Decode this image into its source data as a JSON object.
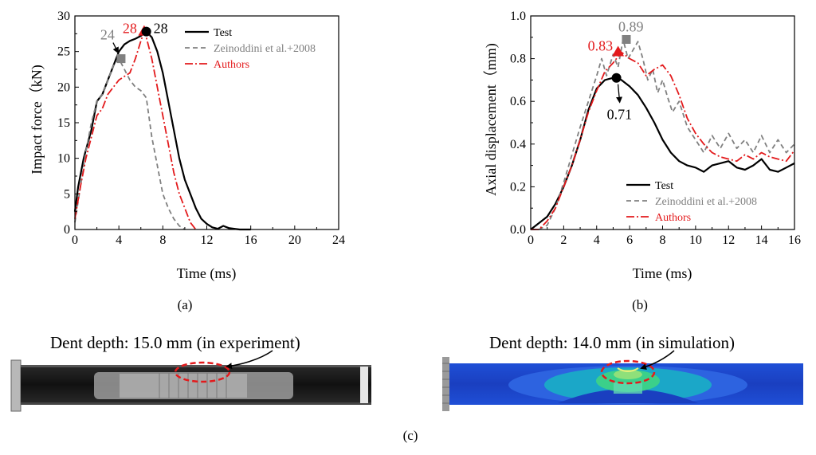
{
  "figure": {
    "panel_a_label": "(a)",
    "panel_b_label": "(b)",
    "panel_c_label": "(c)",
    "dent_experiment_caption": "Dent depth: 15.0 mm (in experiment)",
    "dent_simulation_caption": "Dent depth: 14.0 mm (in simulation)"
  },
  "colors": {
    "test": "#000000",
    "zeinoddini": "#808080",
    "authors": "#e31a1c",
    "dent_ellipse": "#e31a1c"
  },
  "chart_data": [
    {
      "type": "line",
      "id": "a",
      "xlabel": "Time (ms)",
      "ylabel": "Impact force（kN)",
      "xlim": [
        0,
        24
      ],
      "ylim": [
        0,
        30
      ],
      "xticks": [
        0,
        4,
        8,
        12,
        16,
        20,
        24
      ],
      "yticks": [
        0,
        5,
        10,
        15,
        20,
        25,
        30
      ],
      "legend_position": "top-right",
      "series": [
        {
          "name": "Test",
          "style": "solid",
          "x": [
            0,
            0.3,
            0.8,
            1.5,
            2.0,
            2.5,
            3.0,
            3.5,
            4.0,
            4.5,
            5.0,
            5.5,
            6.0,
            6.5,
            7.0,
            7.5,
            8.0,
            8.5,
            9.0,
            9.5,
            10.0,
            10.5,
            11.0,
            11.5,
            12.0,
            12.5,
            13.0,
            13.5,
            14.0,
            14.5,
            15.0,
            16.0
          ],
          "y": [
            2.5,
            6,
            10,
            14,
            18,
            19,
            21,
            23,
            25,
            26,
            26.5,
            26.8,
            27.2,
            27.8,
            27,
            25,
            22,
            18,
            14,
            10,
            7,
            5,
            3,
            1.5,
            0.8,
            0.3,
            0.1,
            0.5,
            0.2,
            0.1,
            0,
            0
          ]
        },
        {
          "name": "Zeinoddini et al.+2008",
          "style": "dashed",
          "x": [
            0,
            0.5,
            1.0,
            1.5,
            2.0,
            2.5,
            3.0,
            3.5,
            4.0,
            4.5,
            5.0,
            5.5,
            6.0,
            6.5,
            7.0,
            7.5,
            8.0,
            8.5,
            9.0,
            9.5,
            10.0
          ],
          "y": [
            1,
            6,
            11,
            15,
            18,
            19,
            21,
            23,
            24,
            22.5,
            21,
            20,
            19.5,
            18.5,
            13,
            9,
            5,
            3,
            1.5,
            0.5,
            0
          ]
        },
        {
          "name": "Authors",
          "style": "dashdot",
          "x": [
            0,
            0.5,
            1.0,
            1.5,
            2.0,
            2.5,
            3.0,
            3.5,
            4.0,
            4.5,
            5.0,
            5.5,
            6.0,
            6.3,
            6.5,
            7.0,
            7.5,
            8.0,
            8.5,
            9.0,
            9.5,
            10.0,
            10.5,
            11.0
          ],
          "y": [
            1.5,
            6,
            10,
            13,
            16,
            17,
            19,
            20,
            21,
            21.5,
            22,
            24,
            26.5,
            27.8,
            27,
            24,
            20,
            16,
            12,
            8,
            5,
            3,
            1,
            0
          ]
        }
      ],
      "annotations": [
        {
          "text": "24",
          "x": 4.2,
          "y": 24,
          "series": "Zeinoddini et al.+2008"
        },
        {
          "text": "28",
          "x": 6.3,
          "y": 27.8,
          "series": "Authors"
        },
        {
          "text": "28",
          "x": 6.5,
          "y": 27.8,
          "series": "Test"
        }
      ]
    },
    {
      "type": "line",
      "id": "b",
      "xlabel": "Time (ms)",
      "ylabel": "Axial displacement（mm)",
      "xlim": [
        0,
        16
      ],
      "ylim": [
        0,
        1.0
      ],
      "xticks": [
        0,
        2,
        4,
        6,
        8,
        10,
        12,
        14,
        16
      ],
      "yticks": [
        0.0,
        0.2,
        0.4,
        0.6,
        0.8,
        1.0
      ],
      "ytick_labels": [
        "0.0",
        "0.2",
        "0.4",
        "0.6",
        "0.8",
        "1.0"
      ],
      "legend_position": "bottom-right",
      "series": [
        {
          "name": "Test",
          "style": "solid",
          "x": [
            0,
            0.5,
            1.0,
            1.5,
            2.0,
            2.5,
            3.0,
            3.5,
            4.0,
            4.5,
            5.0,
            5.3,
            5.5,
            6.0,
            6.5,
            7.0,
            7.5,
            8.0,
            8.5,
            9.0,
            9.5,
            10.0,
            10.5,
            11.0,
            11.5,
            12.0,
            12.5,
            13.0,
            13.5,
            14.0,
            14.5,
            15.0,
            15.5,
            16.0
          ],
          "y": [
            0.0,
            0.03,
            0.06,
            0.12,
            0.2,
            0.3,
            0.42,
            0.56,
            0.66,
            0.7,
            0.71,
            0.71,
            0.7,
            0.67,
            0.63,
            0.57,
            0.5,
            0.42,
            0.36,
            0.32,
            0.3,
            0.29,
            0.27,
            0.3,
            0.31,
            0.32,
            0.29,
            0.28,
            0.3,
            0.33,
            0.28,
            0.27,
            0.29,
            0.31
          ]
        },
        {
          "name": "Zeinoddini et al.+2008",
          "style": "dashed",
          "x": [
            0,
            0.5,
            1.0,
            1.5,
            2.0,
            2.5,
            3.0,
            3.5,
            4.0,
            4.3,
            4.6,
            5.0,
            5.3,
            5.6,
            5.9,
            6.2,
            6.5,
            6.8,
            7.1,
            7.4,
            7.7,
            8.0,
            8.3,
            8.6,
            9.0,
            9.5,
            10.0,
            10.5,
            11.0,
            11.5,
            12.0,
            12.5,
            13.0,
            13.5,
            14.0,
            14.5,
            15.0,
            15.5,
            16.0
          ],
          "y": [
            0.0,
            0.0,
            0.02,
            0.1,
            0.22,
            0.35,
            0.48,
            0.6,
            0.72,
            0.8,
            0.72,
            0.82,
            0.76,
            0.89,
            0.8,
            0.84,
            0.88,
            0.8,
            0.7,
            0.75,
            0.64,
            0.7,
            0.62,
            0.55,
            0.6,
            0.48,
            0.42,
            0.36,
            0.44,
            0.38,
            0.45,
            0.38,
            0.42,
            0.36,
            0.44,
            0.36,
            0.42,
            0.36,
            0.4
          ]
        },
        {
          "name": "Authors",
          "style": "dashdot",
          "x": [
            0,
            0.5,
            1.0,
            1.5,
            2.0,
            2.5,
            3.0,
            3.5,
            4.0,
            4.5,
            5.0,
            5.5,
            6.0,
            6.5,
            7.0,
            7.5,
            8.0,
            8.5,
            9.0,
            9.5,
            10.0,
            10.5,
            11.0,
            11.5,
            12.0,
            12.5,
            13.0,
            13.5,
            14.0,
            14.5,
            15.0,
            15.5,
            16.0
          ],
          "y": [
            0.0,
            0.0,
            0.04,
            0.1,
            0.2,
            0.3,
            0.42,
            0.55,
            0.65,
            0.74,
            0.78,
            0.83,
            0.8,
            0.78,
            0.72,
            0.75,
            0.77,
            0.72,
            0.63,
            0.52,
            0.45,
            0.4,
            0.36,
            0.34,
            0.33,
            0.32,
            0.35,
            0.33,
            0.36,
            0.34,
            0.33,
            0.32,
            0.37
          ]
        }
      ],
      "annotations": [
        {
          "text": "0.89",
          "x": 5.8,
          "y": 0.89,
          "series": "Zeinoddini et al.+2008"
        },
        {
          "text": "0.83",
          "x": 5.3,
          "y": 0.83,
          "series": "Authors"
        },
        {
          "text": "0.71",
          "x": 5.2,
          "y": 0.71,
          "series": "Test"
        }
      ]
    }
  ]
}
